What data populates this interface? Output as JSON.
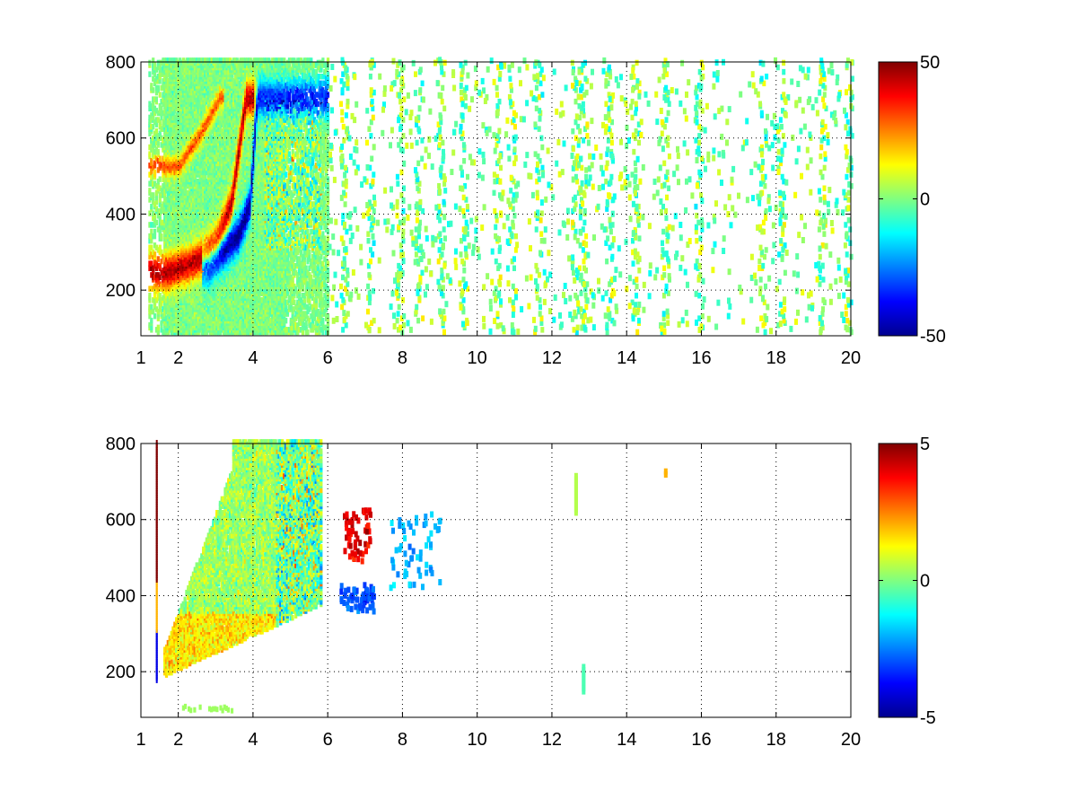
{
  "chart_data": [
    {
      "type": "heatmap",
      "xlim": [
        1,
        20
      ],
      "ylim": [
        80,
        800
      ],
      "x_ticks": [
        1,
        2,
        4,
        6,
        8,
        10,
        12,
        14,
        16,
        18,
        20
      ],
      "x_tick_labels": [
        "1",
        "2",
        "4",
        "6",
        "8",
        "10",
        "12",
        "14",
        "16",
        "18",
        "20"
      ],
      "y_ticks": [
        200,
        400,
        600,
        800
      ],
      "y_tick_labels": [
        "200",
        "400",
        "600",
        "800"
      ],
      "grid": true,
      "colorbar": {
        "min": -50,
        "max": 50,
        "ticks": [
          50,
          0,
          -50
        ],
        "tick_labels": [
          "50",
          "0",
          "-50"
        ],
        "colormap": "jet"
      },
      "features": {
        "positive_ridge": {
          "x": [
            1.6,
            2.2,
            2.6,
            3.0,
            3.4,
            3.8
          ],
          "y": [
            240,
            260,
            280,
            320,
            420,
            700
          ],
          "value": 45
        },
        "negative_ridge": {
          "x": [
            2.8,
            3.2,
            3.6,
            3.9,
            4.1
          ],
          "y": [
            260,
            300,
            340,
            420,
            700
          ],
          "value": -48
        },
        "weak_positive_band": {
          "x": [
            2.0,
            2.6,
            3.1
          ],
          "y": [
            520,
            610,
            700
          ],
          "value": 30
        },
        "noise_value_range": [
          -15,
          15
        ],
        "noise_column_x": [
          6.4,
          7.1,
          7.9,
          8.4,
          9.0,
          9.6,
          10.5,
          10.9,
          11.6,
          12.6,
          12.8,
          13.5,
          14.2,
          15.0,
          15.9,
          17.6,
          18.1,
          19.2,
          19.9
        ]
      }
    },
    {
      "type": "heatmap",
      "xlim": [
        1,
        20
      ],
      "ylim": [
        80,
        800
      ],
      "x_ticks": [
        1,
        2,
        4,
        6,
        8,
        10,
        12,
        14,
        16,
        18,
        20
      ],
      "x_tick_labels": [
        "1",
        "2",
        "4",
        "6",
        "8",
        "10",
        "12",
        "14",
        "16",
        "18",
        "20"
      ],
      "y_ticks": [
        200,
        400,
        600,
        800
      ],
      "y_tick_labels": [
        "200",
        "400",
        "600",
        "800"
      ],
      "grid": true,
      "colorbar": {
        "min": -5,
        "max": 5,
        "ticks": [
          5,
          0,
          -5
        ],
        "tick_labels": [
          "5",
          "0",
          "-5"
        ],
        "colormap": "jet"
      },
      "features": {
        "dense_region_x": [
          1.6,
          5.8
        ],
        "positive_cluster": {
          "x": [
            6.4,
            7.1
          ],
          "y": [
            480,
            620
          ],
          "value": 4
        },
        "negative_cluster": {
          "x": [
            6.3,
            7.2
          ],
          "y": [
            350,
            420
          ],
          "value": -3
        },
        "negative_cluster_2": {
          "x": [
            7.6,
            9.0
          ],
          "y": [
            410,
            610
          ],
          "value": -2
        },
        "sparse_points": [
          {
            "x": 12.6,
            "y": [
              610,
              710
            ],
            "value": 0.5
          },
          {
            "x": 12.8,
            "y": [
              140,
              210
            ],
            "value": -0.5
          },
          {
            "x": 15.0,
            "y": [
              710,
              720
            ],
            "value": 2
          }
        ]
      }
    }
  ]
}
